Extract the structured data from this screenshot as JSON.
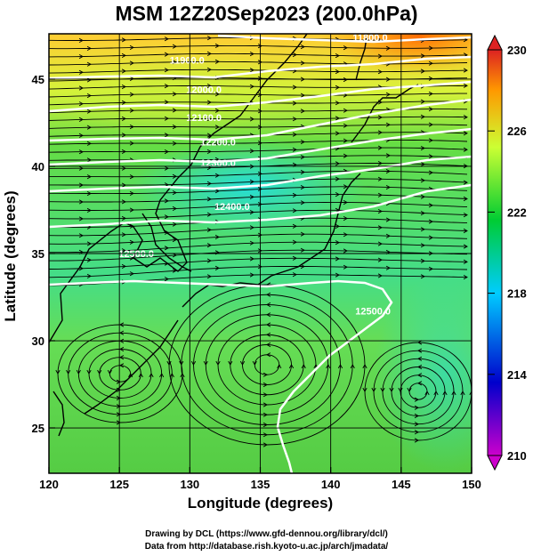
{
  "title": "MSM 12Z20Sep2023 (200.0hPa)",
  "xlabel": "Longitude (degrees)",
  "ylabel": "Latitude (degrees)",
  "credits": [
    "Drawing by DCL (https://www.gfd-dennou.org/library/dcl/)",
    "Data from http://database.rish.kyoto-u.ac.jp/arch/jmadata/"
  ],
  "chart_data": {
    "type": "heatmap",
    "xlim": [
      120,
      150
    ],
    "ylim": [
      22.4,
      47.6
    ],
    "x_ticks": [
      120,
      125,
      130,
      135,
      140,
      145,
      150
    ],
    "y_ticks": [
      25,
      30,
      35,
      40,
      45
    ],
    "colorbar": {
      "range": [
        210,
        230
      ],
      "ticks": [
        210,
        214,
        218,
        222,
        226,
        230
      ],
      "colors": [
        "#cc00cc",
        "#0000cc",
        "#00ccff",
        "#00cc33",
        "#ccff33",
        "#ff9900",
        "#dd2222"
      ]
    },
    "contour_labels": [
      {
        "text": "11800.0",
        "lon": 142.8,
        "lat": 47.2
      },
      {
        "text": "11900.0",
        "lon": 129.8,
        "lat": 45.9
      },
      {
        "text": "12000.0",
        "lon": 131.0,
        "lat": 44.2
      },
      {
        "text": "12100.0",
        "lon": 131.0,
        "lat": 42.6
      },
      {
        "text": "12200.0",
        "lon": 132.0,
        "lat": 41.2
      },
      {
        "text": "12300.0",
        "lon": 132.0,
        "lat": 40.0
      },
      {
        "text": "12400.0",
        "lon": 133.0,
        "lat": 37.5
      },
      {
        "text": "12500.0",
        "lon": 126.2,
        "lat": 34.8
      },
      {
        "text": "12500.0",
        "lon": 143.0,
        "lat": 31.5
      }
    ]
  }
}
